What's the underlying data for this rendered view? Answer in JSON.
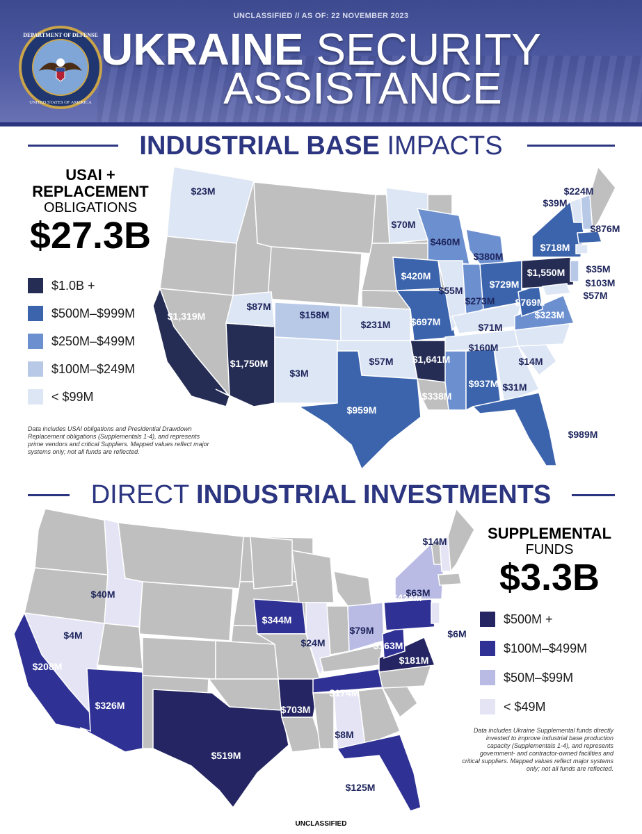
{
  "header": {
    "classification": "UNCLASSIFIED // AS OF: 22 NOVEMBER 2023",
    "title_bold": "UKRAINE",
    "title_light_1": "SECURITY",
    "title_light_2": "ASSISTANCE",
    "seal_text_top": "DEPARTMENT OF DEFENSE",
    "seal_text_bottom": "UNITED STATES OF AMERICA"
  },
  "section1": {
    "title_bold": "INDUSTRIAL BASE",
    "title_light": "IMPACTS",
    "stat_line1": "USAI +",
    "stat_line2": "REPLACEMENT",
    "stat_line3": "OBLIGATIONS",
    "stat_value": "$27.3B",
    "legend": [
      {
        "label": "$1.0B +",
        "color": "#252d55"
      },
      {
        "label": "$500M–$999M",
        "color": "#3b64ad"
      },
      {
        "label": "$250M–$499M",
        "color": "#6c8fcf"
      },
      {
        "label": "$100M–$249M",
        "color": "#b8c9e8"
      },
      {
        "label": "< $99M",
        "color": "#dde6f4"
      }
    ],
    "note": [
      "Data includes USAI obligations and Presidential Drawdown",
      "Replacement obligations (Supplementals 1-4), and represents",
      "prime vendors and critical Suppliers. Mapped values reflect major",
      "systems only; not all funds are reflected."
    ],
    "values": {
      "wa": "$23M",
      "ca": "$1,319M",
      "az": "$1,750M",
      "ut": "$87M",
      "co": "$158M",
      "nm": "$3M",
      "tx": "$959M",
      "ks": "$231M",
      "ok": "$57M",
      "mn": "$70M",
      "wi": "$460M",
      "ia": "$420M",
      "il": "$55M",
      "mo": "$697M",
      "ar": "$1,641M",
      "la": "$338M",
      "ms": "$937M",
      "tn": "$160M",
      "ky": "$71M",
      "in": "$273M",
      "oh": "$729M",
      "mi": "$380M",
      "pa": "$1,550M",
      "ny": "$718M",
      "wv": "$769M",
      "va": "$323M",
      "nc": "$14M",
      "sc": "$31M",
      "fl": "$989M",
      "vt": "$39M",
      "nh": "$224M",
      "ma": "$876M",
      "ct": "$35M",
      "nj": "$103M",
      "md": "$57M"
    }
  },
  "section2": {
    "title_light": "DIRECT",
    "title_bold": "INDUSTRIAL INVESTMENTS",
    "stat_line1": "SUPPLEMENTAL",
    "stat_line2": "FUNDS",
    "stat_value": "$3.3B",
    "legend": [
      {
        "label": "$500M +",
        "color": "#242562"
      },
      {
        "label": "$100M–$499M",
        "color": "#2f3194"
      },
      {
        "label": "$50M–$99M",
        "color": "#b9bbe4"
      },
      {
        "label": "< $49M",
        "color": "#e4e4f5"
      }
    ],
    "note": [
      "Data includes Ukraine Supplemental funds directly",
      "invested to improve industrial base production",
      "capacity (Supplementals 1-4), and represents",
      "government- and contractor-owned facilities and",
      "critical suppliers. Mapped values reflect major systems",
      "only; not all funds are reflected."
    ],
    "values": {
      "id": "$40M",
      "nv": "$4M",
      "ca": "$208M",
      "az": "$326M",
      "tx": "$519M",
      "ia": "$344M",
      "il": "$24M",
      "ar": "$703M",
      "ms": "$8M",
      "tn": "$174M",
      "oh": "$79M",
      "wv": "$163M",
      "pa": "$428M",
      "va": "$181M",
      "ny": "$63M",
      "nh": "$14M",
      "nj": "$6M",
      "fl": "$125M"
    }
  },
  "footer": {
    "classification": "UNCLASSIFIED"
  }
}
